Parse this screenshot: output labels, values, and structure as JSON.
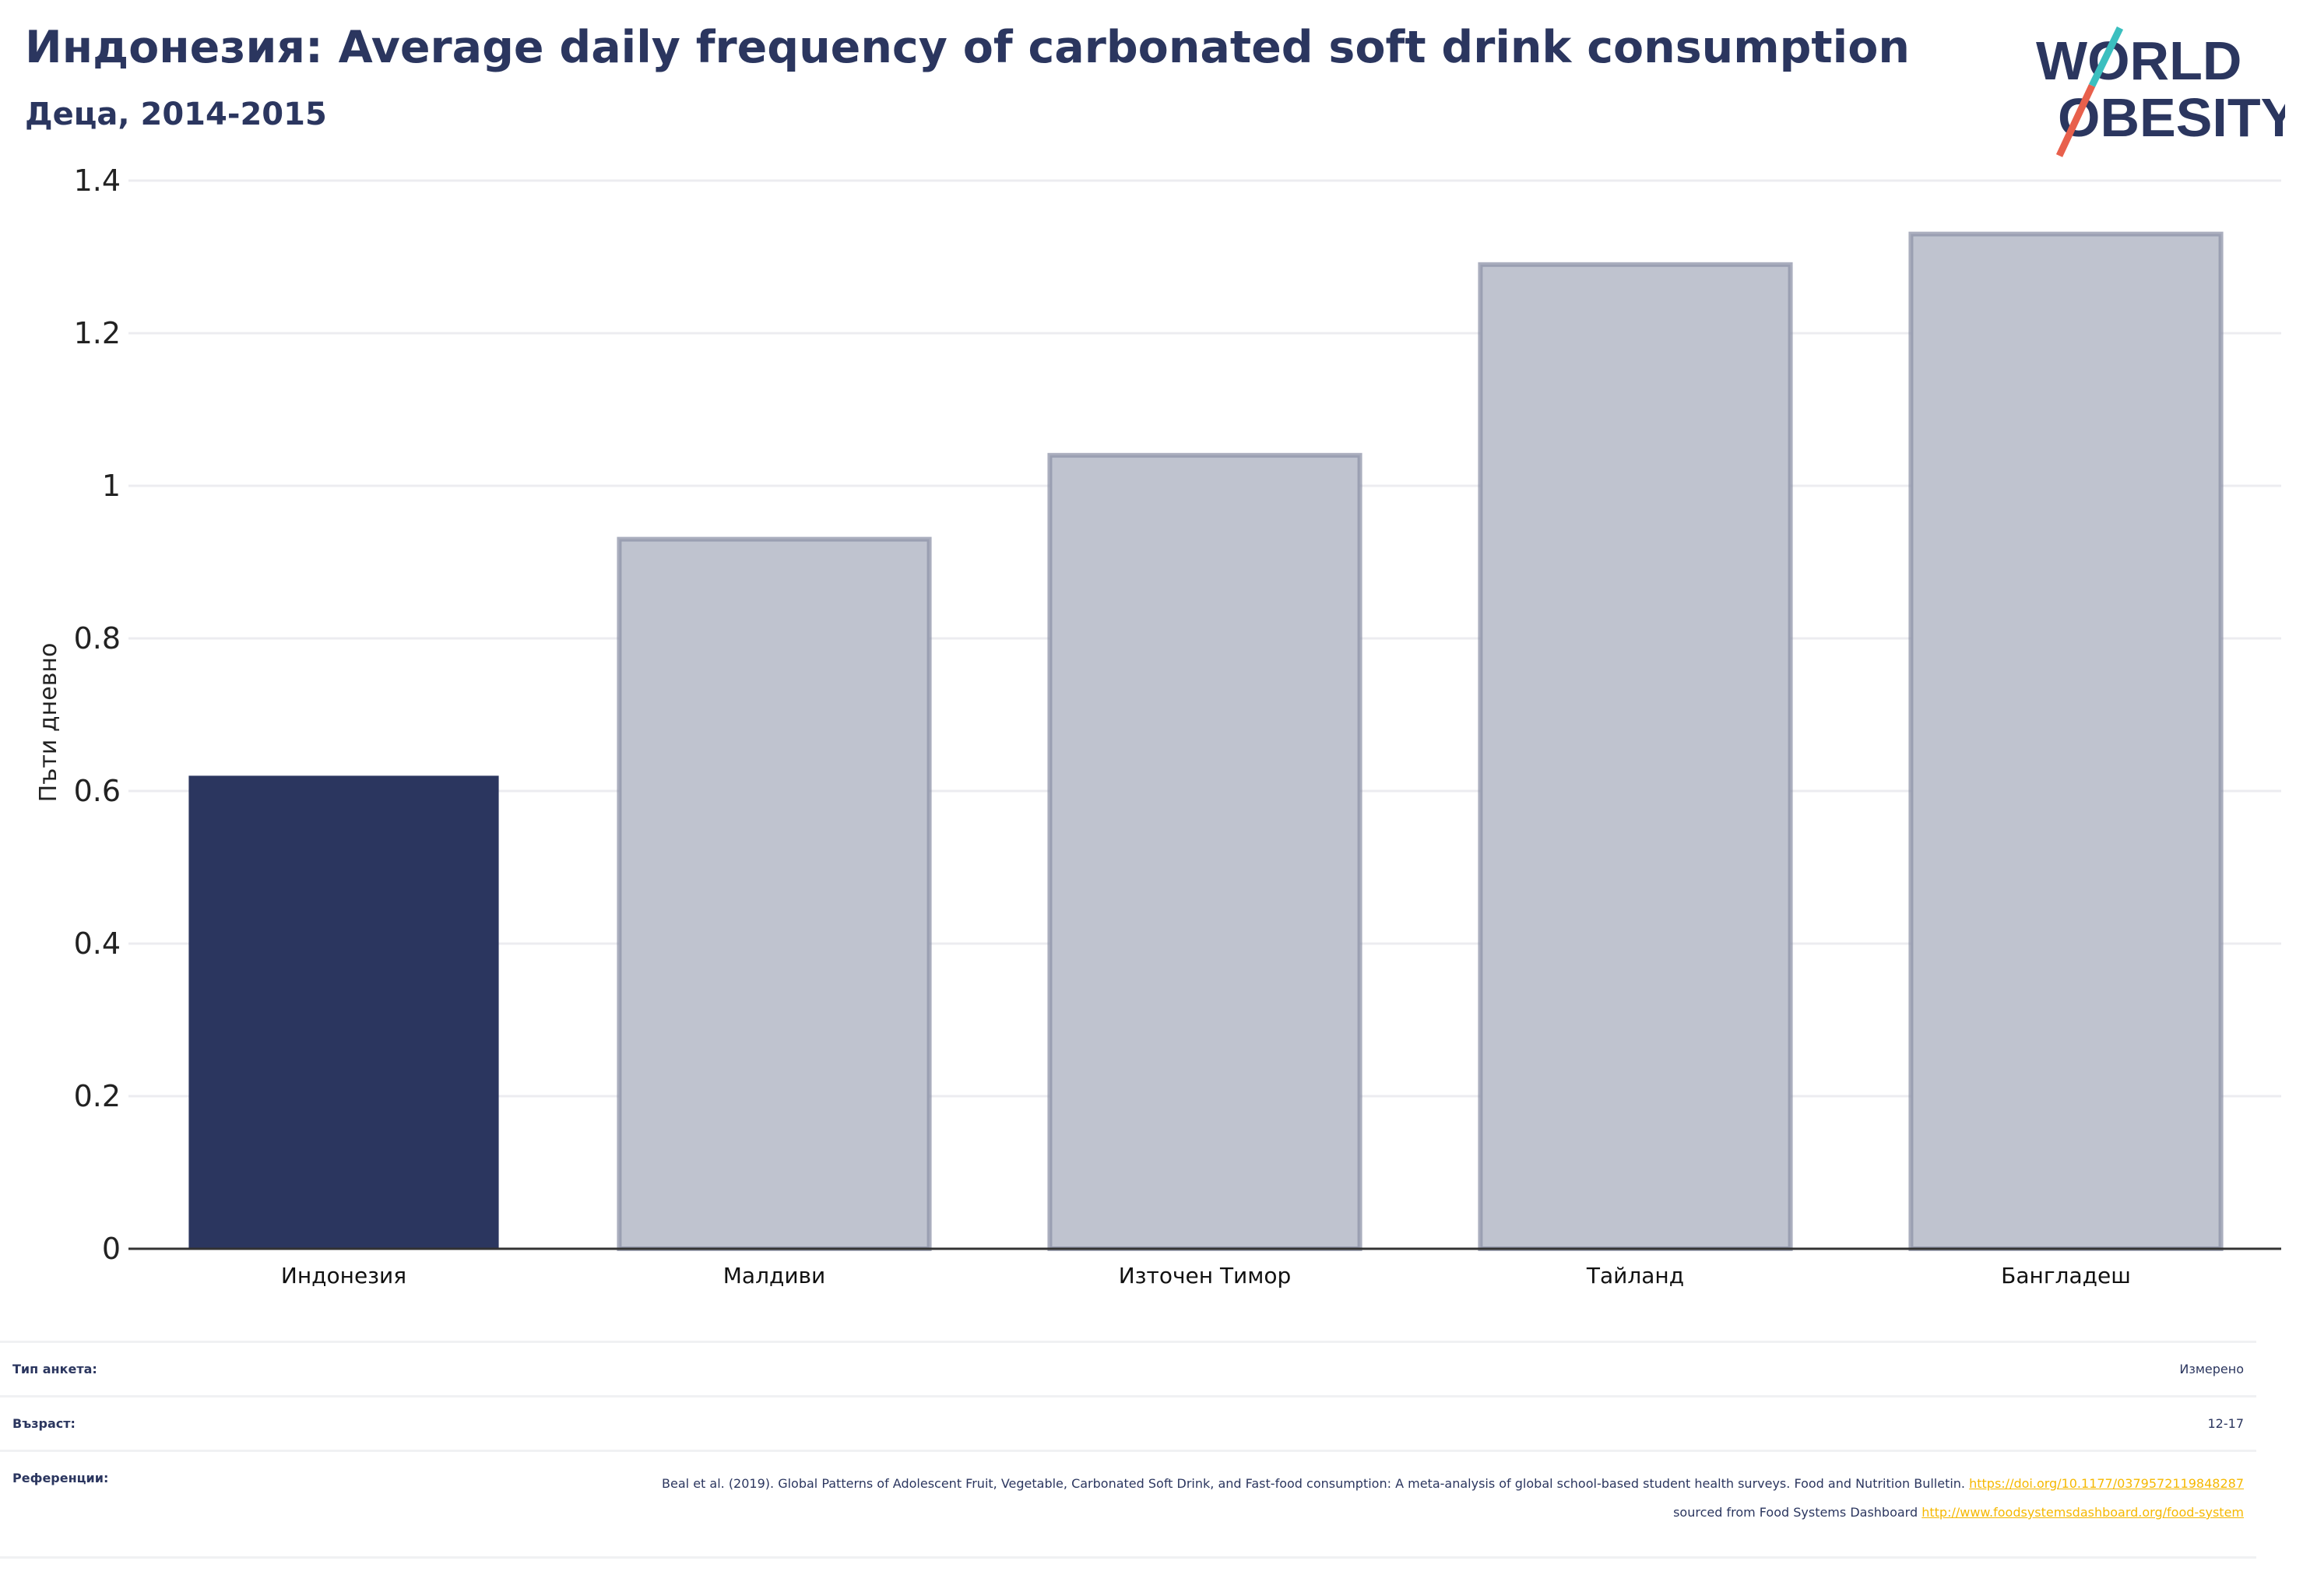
{
  "header": {
    "title": "Индонезия: Average daily frequency of carbonated soft drink consumption",
    "subtitle": "Деца, 2014-2015"
  },
  "logo": {
    "line1": "WORLD",
    "line2": "OBESITY",
    "colors": {
      "text": "#2b365f",
      "slash_top": "#3bbfbf",
      "slash_bottom": "#e8604c"
    }
  },
  "colors": {
    "highlight_bar": "#2b365f",
    "other_bar_fill": "#bfc3cf",
    "other_bar_stroke": "#8d93a8",
    "grid": "#ececf0",
    "axis": "#333333",
    "link": "#f5b800"
  },
  "chart_data": {
    "type": "bar",
    "title": "",
    "xlabel": "",
    "ylabel": "Пъти дневно",
    "ylim": [
      0,
      1.4
    ],
    "yticks": [
      0,
      0.2,
      0.4,
      0.6,
      0.8,
      1,
      1.2,
      1.4
    ],
    "ytick_labels": [
      "0",
      "0.2",
      "0.4",
      "0.6",
      "0.8",
      "1",
      "1.2",
      "1.4"
    ],
    "categories": [
      "Индонезия",
      "Малдиви",
      "Източен Тимор",
      "Тайланд",
      "Бангладеш"
    ],
    "values": [
      0.62,
      0.93,
      1.04,
      1.29,
      1.33
    ],
    "highlighted_category": "Индонезия",
    "grid": true
  },
  "info": {
    "survey_type_label": "Тип анкета:",
    "survey_type_value": "Измерено",
    "age_label": "Възраст:",
    "age_value": "12-17",
    "references_label": "Референции:",
    "references_text_1": "Beal et al. (2019). Global Patterns of Adolescent Fruit, Vegetable, Carbonated Soft Drink, and Fast-food consumption: A meta-analysis of global school-based student health surveys. Food and Nutrition Bulletin.",
    "references_link_1": "https://doi.org/10.1177/0379572119848287",
    "references_text_2": "sourced from Food Systems Dashboard",
    "references_link_2": "http://www.foodsystemsdashboard.org/food-system"
  }
}
